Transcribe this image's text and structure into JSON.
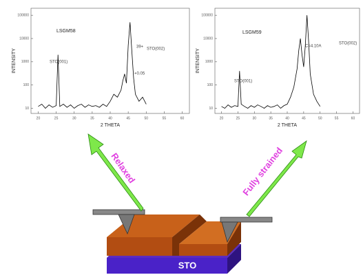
{
  "chart_data": [
    {
      "type": "line",
      "title": "LSGM58",
      "x_label": "2 THETA",
      "y_label": "INTENSITY",
      "log_y": true,
      "color": "#000000",
      "annotations": [
        "STO(001)",
        "39+",
        "STO(002)",
        "+0.05"
      ],
      "x": [
        20,
        21,
        22,
        23,
        24,
        25,
        25.5,
        26,
        27,
        28,
        29,
        30,
        31,
        32,
        33,
        34,
        35,
        36,
        37,
        38,
        39,
        40,
        41,
        42,
        43,
        43.5,
        44,
        44.5,
        45,
        45.5,
        46,
        46.5,
        47,
        48,
        49,
        50
      ],
      "values": [
        12,
        15,
        10,
        14,
        11,
        13,
        2000,
        12,
        15,
        11,
        14,
        10,
        13,
        15,
        11,
        14,
        12,
        13,
        11,
        15,
        12,
        20,
        40,
        30,
        60,
        150,
        300,
        120,
        5000,
        50000,
        3000,
        200,
        40,
        20,
        30,
        15
      ],
      "xlim": [
        18,
        62
      ],
      "xticks": [
        20,
        25,
        30,
        35,
        40,
        45,
        50,
        55,
        60
      ],
      "ylim": [
        6,
        200000
      ],
      "yticks": [
        10,
        100,
        1000,
        10000,
        100000
      ]
    },
    {
      "type": "line",
      "title": "LSGM59",
      "x_label": "2 THETA",
      "y_label": "INTENSITY",
      "log_y": true,
      "color": "#000000",
      "annotations": [
        "STO(001)",
        "C=4.10A",
        "STO(002)"
      ],
      "x": [
        20,
        21,
        22,
        23,
        24,
        25,
        25.5,
        26,
        27,
        28,
        29,
        30,
        31,
        32,
        33,
        34,
        35,
        36,
        37,
        38,
        39,
        40,
        41,
        42,
        43,
        43.5,
        44,
        44.5,
        45,
        45.5,
        46,
        46.5,
        47,
        48,
        49,
        50
      ],
      "values": [
        12,
        10,
        14,
        11,
        13,
        12,
        400,
        15,
        12,
        10,
        13,
        11,
        14,
        12,
        10,
        13,
        11,
        12,
        14,
        10,
        13,
        15,
        30,
        80,
        500,
        3000,
        10000,
        2000,
        600,
        5000,
        100000,
        8000,
        300,
        40,
        20,
        12
      ],
      "xlim": [
        18,
        62
      ],
      "xticks": [
        20,
        25,
        30,
        35,
        40,
        45,
        50,
        55,
        60
      ],
      "ylim": [
        6,
        200000
      ],
      "yticks": [
        10,
        100,
        1000,
        10000,
        100000
      ]
    }
  ],
  "diagram": {
    "left_arrow": "Relaxed",
    "right_arrow": "Fully strained",
    "substrate": "STO"
  }
}
